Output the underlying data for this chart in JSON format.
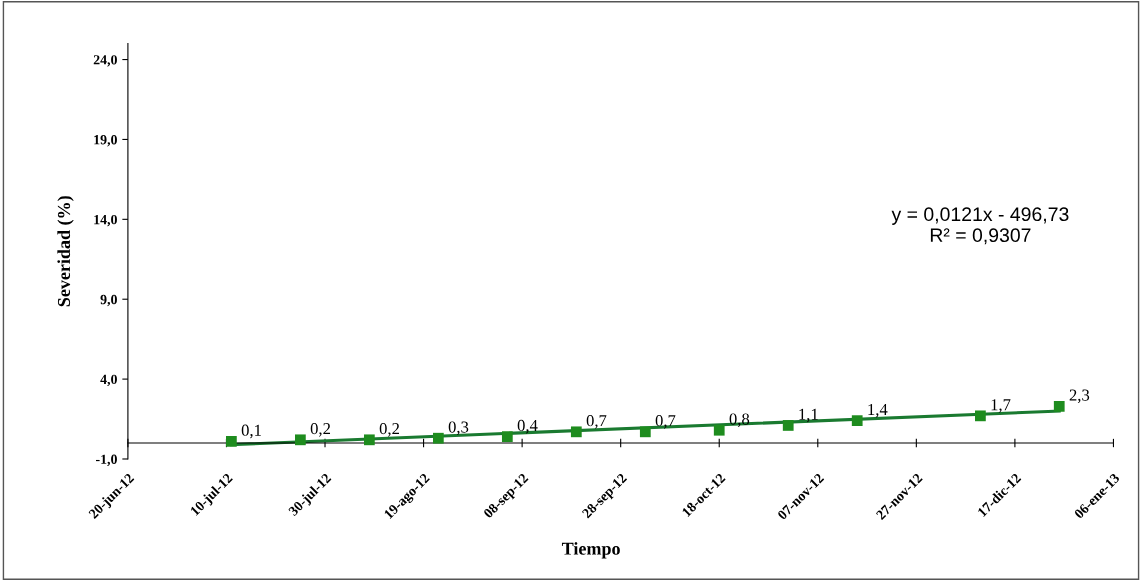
{
  "chart_data": {
    "type": "scatter",
    "xlabel": "Tiempo",
    "ylabel": "Severidad (%)",
    "grid": false,
    "legend": false,
    "xlim": [
      "2012-06-20",
      "2013-01-06"
    ],
    "ylim": [
      -1,
      25
    ],
    "xticks": [
      {
        "value": "2012-06-20",
        "label": "20-jun-12"
      },
      {
        "value": "2012-07-10",
        "label": "10-jul-12"
      },
      {
        "value": "2012-07-30",
        "label": "30-jul-12"
      },
      {
        "value": "2012-08-19",
        "label": "19-ago-12"
      },
      {
        "value": "2012-09-08",
        "label": "08-sep-12"
      },
      {
        "value": "2012-09-28",
        "label": "28-sep-12"
      },
      {
        "value": "2012-10-18",
        "label": "18-oct-12"
      },
      {
        "value": "2012-11-07",
        "label": "07-nov-12"
      },
      {
        "value": "2012-11-27",
        "label": "27-nov-12"
      },
      {
        "value": "2012-12-17",
        "label": "17-dic-12"
      },
      {
        "value": "2013-01-06",
        "label": "06-ene-13"
      }
    ],
    "yticks": [
      {
        "value": -1,
        "label": "-1,0"
      },
      {
        "value": 4,
        "label": "4,0"
      },
      {
        "value": 9,
        "label": "9,0"
      },
      {
        "value": 14,
        "label": "14,0"
      },
      {
        "value": 19,
        "label": "19,0"
      },
      {
        "value": 24,
        "label": "24,0"
      }
    ],
    "x": [
      "2012-07-11",
      "2012-07-25",
      "2012-08-08",
      "2012-08-22",
      "2012-09-05",
      "2012-09-19",
      "2012-10-03",
      "2012-10-18",
      "2012-11-01",
      "2012-11-15",
      "2012-12-10",
      "2012-12-26"
    ],
    "series": [
      {
        "marker": "square",
        "color": "#1e8c1e",
        "values": [
          0.1,
          0.2,
          0.2,
          0.3,
          0.4,
          0.7,
          0.7,
          0.8,
          1.1,
          1.4,
          1.7,
          2.3
        ],
        "value_labels": [
          "0,1",
          "0,2",
          "0,2",
          "0,3",
          "0,4",
          "0,7",
          "0,7",
          "0,8",
          "1,1",
          "1,4",
          "1,7",
          "2,3"
        ]
      },
      {
        "type": "line",
        "color": "#1a7a30",
        "x": [
          "2012-07-11",
          "2012-12-26"
        ],
        "values": [
          -0.1,
          2.0
        ]
      }
    ],
    "annotations": [
      "y = 0,0121x - 496,73\nR² = 0,9307"
    ]
  }
}
